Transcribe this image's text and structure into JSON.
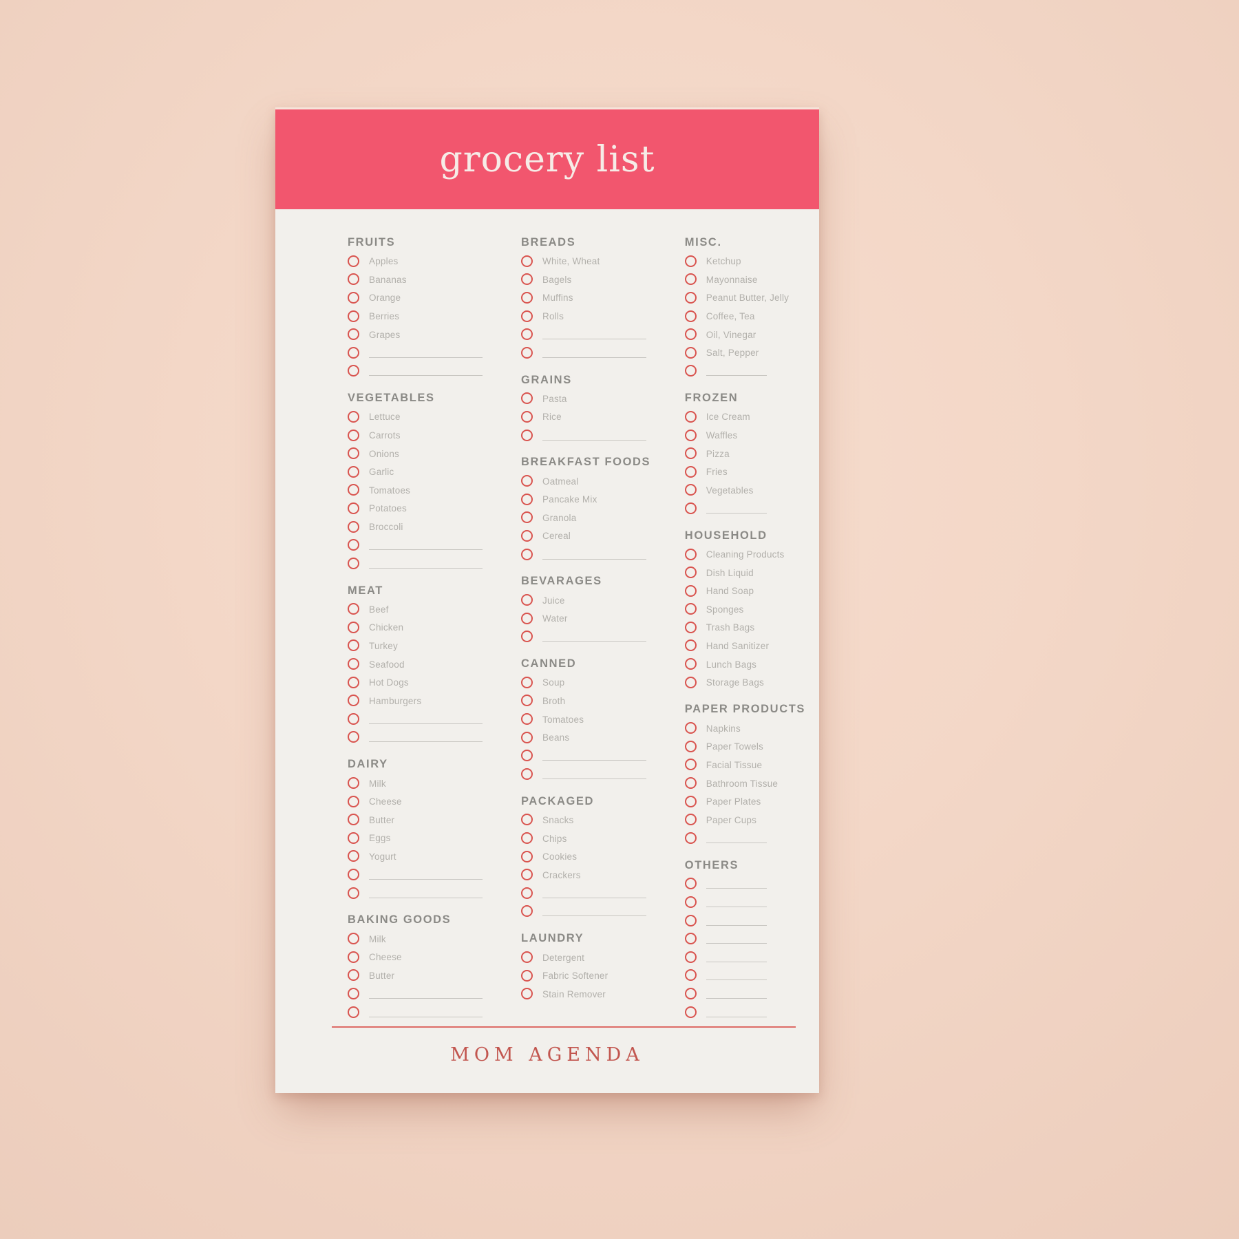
{
  "notepad": {
    "title": "grocery list",
    "brand": "MOM AGENDA",
    "colors": {
      "header_bar": "#f2566e",
      "paper": "#f2f0ec",
      "accent": "#d9544f",
      "brand_text": "#c2564f",
      "background": "#f3d7c7"
    },
    "columns": [
      {
        "sections": [
          {
            "title": "FRUITS",
            "items": [
              "Apples",
              "Bananas",
              "Orange",
              "Berries",
              "Grapes"
            ],
            "blanks": 2
          },
          {
            "title": "VEGETABLES",
            "items": [
              "Lettuce",
              "Carrots",
              "Onions",
              "Garlic",
              "Tomatoes",
              "Potatoes",
              "Broccoli"
            ],
            "blanks": 2
          },
          {
            "title": "MEAT",
            "items": [
              "Beef",
              "Chicken",
              "Turkey",
              "Seafood",
              "Hot Dogs",
              "Hamburgers"
            ],
            "blanks": 2
          },
          {
            "title": "DAIRY",
            "items": [
              "Milk",
              "Cheese",
              "Butter",
              "Eggs",
              "Yogurt"
            ],
            "blanks": 2
          },
          {
            "title": "BAKING GOODS",
            "items": [
              "Milk",
              "Cheese",
              "Butter"
            ],
            "blanks": 2
          }
        ]
      },
      {
        "sections": [
          {
            "title": "BREADS",
            "items": [
              "White, Wheat",
              "Bagels",
              "Muffins",
              "Rolls"
            ],
            "blanks": 2
          },
          {
            "title": "GRAINS",
            "items": [
              "Pasta",
              "Rice"
            ],
            "blanks": 1
          },
          {
            "title": "BREAKFAST FOODS",
            "items": [
              "Oatmeal",
              "Pancake Mix",
              "Granola",
              "Cereal"
            ],
            "blanks": 1
          },
          {
            "title": "BEVARAGES",
            "items": [
              "Juice",
              "Water"
            ],
            "blanks": 1
          },
          {
            "title": "CANNED",
            "items": [
              "Soup",
              "Broth",
              "Tomatoes",
              "Beans"
            ],
            "blanks": 2
          },
          {
            "title": "PACKAGED",
            "items": [
              "Snacks",
              "Chips",
              "Cookies",
              "Crackers"
            ],
            "blanks": 2
          },
          {
            "title": "LAUNDRY",
            "items": [
              "Detergent",
              "Fabric Softener",
              "Stain Remover"
            ],
            "blanks": 0
          }
        ]
      },
      {
        "sections": [
          {
            "title": "MISC.",
            "items": [
              "Ketchup",
              "Mayonnaise",
              "Peanut Butter, Jelly",
              "Coffee, Tea",
              "Oil, Vinegar",
              "Salt, Pepper"
            ],
            "blanks": 1
          },
          {
            "title": "FROZEN",
            "items": [
              "Ice Cream",
              "Waffles",
              "Pizza",
              "Fries",
              "Vegetables"
            ],
            "blanks": 1
          },
          {
            "title": "HOUSEHOLD",
            "items": [
              "Cleaning Products",
              "Dish Liquid",
              "Hand Soap",
              "Sponges",
              "Trash Bags",
              "Hand Sanitizer",
              "Lunch Bags",
              "Storage Bags"
            ],
            "blanks": 0
          },
          {
            "title": "PAPER PRODUCTS",
            "items": [
              "Napkins",
              "Paper Towels",
              "Facial Tissue",
              "Bathroom Tissue",
              "Paper Plates",
              "Paper Cups"
            ],
            "blanks": 1
          },
          {
            "title": "OTHERS",
            "items": [],
            "blanks": 8
          }
        ]
      }
    ]
  }
}
